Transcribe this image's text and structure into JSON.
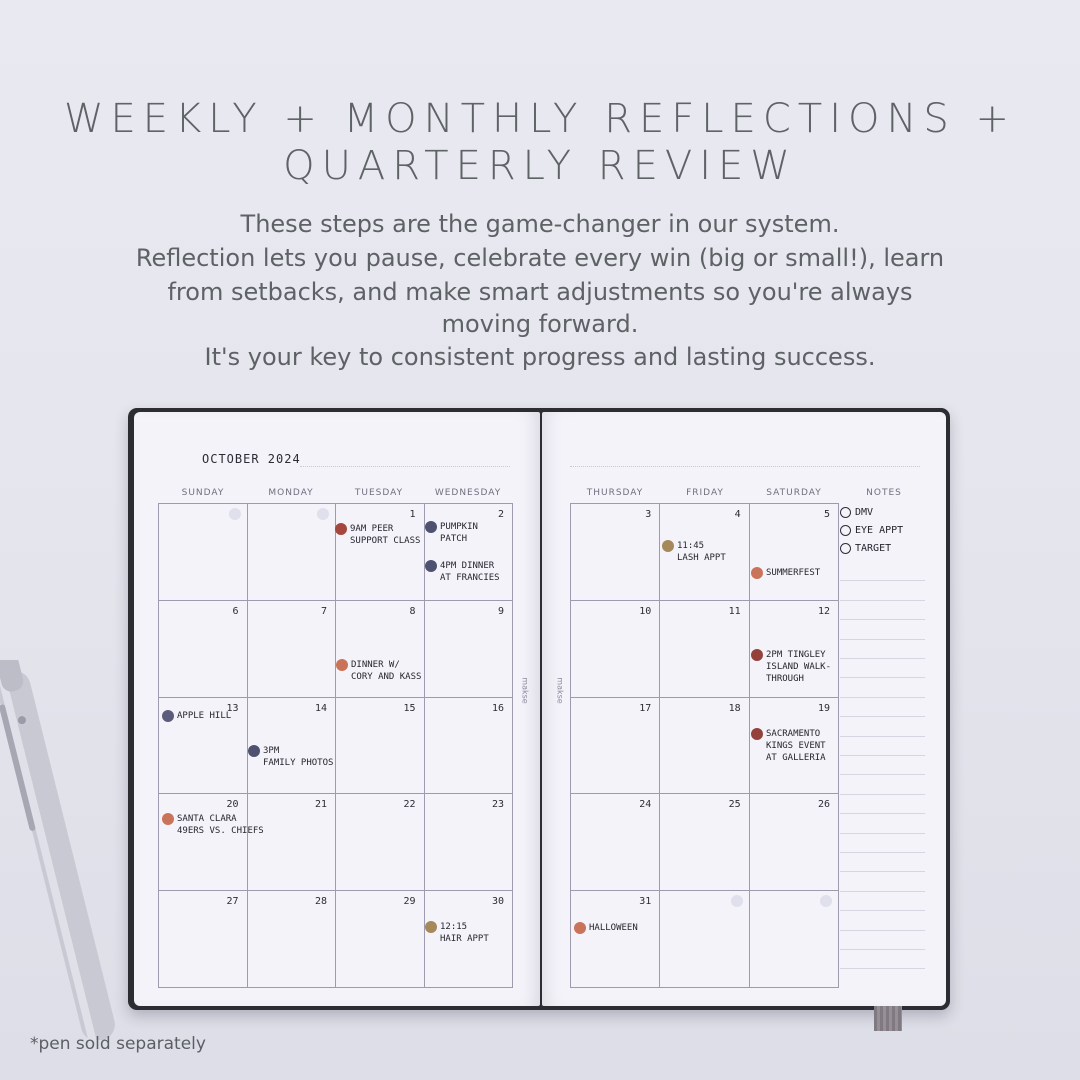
{
  "heading": {
    "line1": "WEEKLY + MONTHLY REFLECTIONS +",
    "line2": "QUARTERLY REVIEW"
  },
  "body": [
    "These steps are the game-changer in our system.",
    "Reflection lets you pause, celebrate every win (big or small!), learn",
    "from setbacks, and make smart adjustments so you're always",
    "moving forward.",
    "It's your key to consistent progress and lasting success."
  ],
  "planner": {
    "month": "OCTOBER 2024",
    "brand": "makse",
    "days_left": [
      "SUNDAY",
      "MONDAY",
      "TUESDAY",
      "WEDNESDAY"
    ],
    "days_right": [
      "THURSDAY",
      "FRIDAY",
      "SATURDAY"
    ],
    "notes_header": "NOTES",
    "left_cells": [
      [
        "",
        "",
        "1",
        "2"
      ],
      [
        "6",
        "7",
        "8",
        "9"
      ],
      [
        "13",
        "14",
        "15",
        "16"
      ],
      [
        "20",
        "21",
        "22",
        "23"
      ],
      [
        "27",
        "28",
        "29",
        "30"
      ]
    ],
    "right_cells": [
      [
        "3",
        "4",
        "5"
      ],
      [
        "10",
        "11",
        "12"
      ],
      [
        "17",
        "18",
        "19"
      ],
      [
        "24",
        "25",
        "26"
      ],
      [
        "31",
        "",
        ""
      ]
    ],
    "events": [
      {
        "lines": [
          "9AM PEER",
          "SUPPORT CLASS"
        ],
        "color": "#a4483f"
      },
      {
        "lines": [
          "PUMPKIN",
          "PATCH"
        ],
        "color": "#4f5170"
      },
      {
        "lines": [
          "4PM DINNER",
          "AT FRANCIES"
        ],
        "color": "#4f5170"
      },
      {
        "lines": [
          "DINNER W/",
          "CORY AND KASS"
        ],
        "color": "#c9735a"
      },
      {
        "lines": [
          "APPLE HILL"
        ],
        "color": "#5b5c7c"
      },
      {
        "lines": [
          "3PM",
          "FAMILY PHOTOS"
        ],
        "color": "#4f5170"
      },
      {
        "lines": [
          "SANTA CLARA",
          "49ERS VS. CHIEFS"
        ],
        "color": "#c9735a"
      },
      {
        "lines": [
          "12:15",
          "HAIR APPT"
        ],
        "color": "#a5895a"
      },
      {
        "lines": [
          "11:45",
          "LASH APPT"
        ],
        "color": "#a5895a"
      },
      {
        "lines": [
          "SUMMERFEST"
        ],
        "color": "#c9735a"
      },
      {
        "lines": [
          "2PM TINGLEY",
          "ISLAND WALK-",
          "THROUGH"
        ],
        "color": "#93413a"
      },
      {
        "lines": [
          "SACRAMENTO",
          "KINGS EVENT",
          "AT GALLERIA"
        ],
        "color": "#93413a"
      },
      {
        "lines": [
          "HALLOWEEN"
        ],
        "color": "#c9735a"
      }
    ],
    "notes": [
      "DMV",
      "EYE APPT",
      "TARGET"
    ]
  },
  "footnote": "*pen sold separately"
}
